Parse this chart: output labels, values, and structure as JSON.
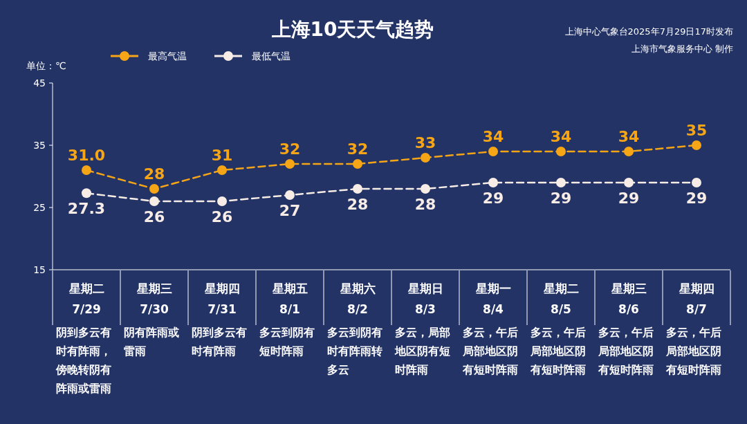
{
  "chart_data": {
    "type": "line",
    "title": "上海10天天气趋势",
    "ylabel": "单位：℃",
    "categories": [
      "星期二\n7/29",
      "星期三\n7/30",
      "星期四\n7/31",
      "星期五\n8/1",
      "星期六\n8/2",
      "星期日\n8/3",
      "星期一\n8/4",
      "星期二\n8/5",
      "星期三\n8/6",
      "星期四\n8/7"
    ],
    "series": [
      {
        "name": "最高气温",
        "color": "#f5a516",
        "values": [
          31.0,
          28,
          31,
          32,
          32,
          33,
          34,
          34,
          34,
          35
        ],
        "value_labels": [
          "31.0",
          "28",
          "31",
          "32",
          "32",
          "33",
          "34",
          "34",
          "34",
          "35"
        ]
      },
      {
        "name": "最低气温",
        "color": "#f7ede6",
        "values": [
          27.3,
          26,
          26,
          27,
          28,
          28,
          29,
          29,
          29,
          29
        ],
        "value_labels": [
          "27.3",
          "26",
          "26",
          "27",
          "28",
          "28",
          "29",
          "29",
          "29",
          "29"
        ]
      }
    ],
    "ylim": [
      15,
      45
    ],
    "yticks": [
      15,
      25,
      35,
      45
    ],
    "grid": false,
    "legend": "top left",
    "marker": "circle",
    "line_style": "dashed",
    "annotations": [
      "上海中心气象台2025年7月29日17时发布",
      "上海市气象服务中心 制作",
      "阴到多云有时有阵雨，傍晚转阴有阵雨或雷雨",
      "阴有阵雨或雷雨",
      "阴到多云有时有阵雨",
      "多云到阴有短时阵雨",
      "多云到阴有时有阵雨转多云",
      "多云，局部地区阴有短时阵雨",
      "多云，午后局部地区阴有短时阵雨",
      "多云，午后局部地区阴有短时阵雨",
      "多云，午后局部地区阴有短时阵雨",
      "多云，午后局部地区阴有短时阵雨"
    ]
  }
}
